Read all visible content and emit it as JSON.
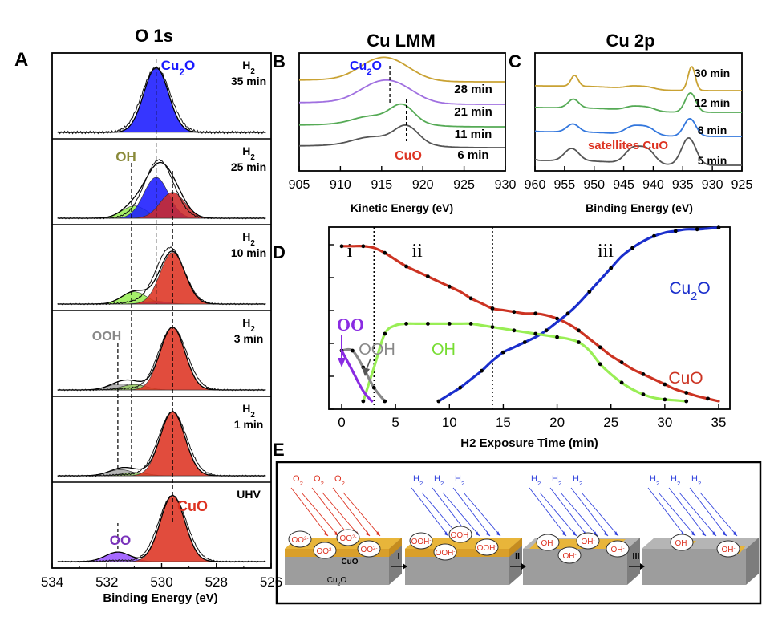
{
  "chart_data": [
    {
      "panel": "A",
      "type": "line",
      "title": "O 1s",
      "xlabel": "Binding Energy (eV)",
      "xlim": [
        534,
        526
      ],
      "x_ticks": [
        "534",
        "532",
        "530",
        "528",
        "526"
      ],
      "stack": [
        {
          "gas": "H2",
          "time": "35 min",
          "sum_center": 530.2,
          "sum_height": 0.95,
          "peaks": [
            {
              "component": "Cu2O",
              "center": 530.2,
              "height": 0.95,
              "color": "#1a1aff"
            }
          ],
          "labels": [
            "Cu2O"
          ]
        },
        {
          "gas": "H2",
          "time": "25 min",
          "sum_center": 530.1,
          "sum_height": 0.86,
          "peaks": [
            {
              "component": "OH",
              "center": 531.0,
              "height": 0.18,
              "color": "#99ee55"
            },
            {
              "component": "Cu2O",
              "center": 530.2,
              "height": 0.6,
              "color": "#1a1aff"
            },
            {
              "component": "CuO",
              "center": 529.6,
              "height": 0.38,
              "color": "#cc2a2a"
            }
          ],
          "labels": [
            "OH"
          ]
        },
        {
          "gas": "H2",
          "time": "10 min",
          "sum_center": 529.7,
          "sum_height": 0.84,
          "peaks": [
            {
              "component": "OH",
              "center": 531.0,
              "height": 0.18,
              "color": "#99ee55"
            },
            {
              "component": "Cu2O",
              "center": 530.2,
              "height": 0.04,
              "color": "#1a1aff"
            },
            {
              "component": "CuO",
              "center": 529.6,
              "height": 0.76,
              "color": "#dd3322"
            }
          ],
          "labels": []
        },
        {
          "gas": "H2",
          "time": "3 min",
          "sum_center": 529.6,
          "sum_height": 0.92,
          "peaks": [
            {
              "component": "OOH",
              "center": 531.5,
              "height": 0.09,
              "color": "#aaaaaa"
            },
            {
              "component": "OH",
              "center": 531.0,
              "height": 0.08,
              "color": "#99cc66"
            },
            {
              "component": "CuO",
              "center": 529.6,
              "height": 0.92,
              "color": "#dd3322"
            }
          ],
          "labels": [
            "OOH"
          ]
        },
        {
          "gas": "H2",
          "time": "1 min",
          "sum_center": 529.6,
          "sum_height": 0.94,
          "peaks": [
            {
              "component": "OOH",
              "center": 531.5,
              "height": 0.09,
              "color": "#aaaaaa"
            },
            {
              "component": "OH",
              "center": 531.0,
              "height": 0.05,
              "color": "#99cc66"
            },
            {
              "component": "CuO",
              "center": 529.6,
              "height": 0.94,
              "color": "#dd3322"
            }
          ],
          "labels": []
        },
        {
          "gas": "UHV",
          "time": "",
          "sum_center": 529.6,
          "sum_height": 0.97,
          "peaks": [
            {
              "component": "OO",
              "center": 531.6,
              "height": 0.14,
              "color": "#9a55ff"
            },
            {
              "component": "CuO",
              "center": 529.6,
              "height": 0.97,
              "color": "#dd3322"
            }
          ],
          "labels": [
            "CuO",
            "OO"
          ]
        }
      ],
      "reference_lines": [
        531.6,
        531.1,
        530.2,
        529.6
      ]
    },
    {
      "panel": "B",
      "type": "line",
      "title": "Cu LMM",
      "xlabel": "Kinetic Energy (eV)",
      "xlim": [
        905,
        930
      ],
      "x_ticks": [
        "905",
        "910",
        "915",
        "920",
        "925",
        "930"
      ],
      "series": [
        {
          "name": "28 min",
          "color": "#c9a233",
          "peak": 916.0
        },
        {
          "name": "21 min",
          "color": "#a070e0",
          "peak": 916.3
        },
        {
          "name": "11 min",
          "color": "#55aa55",
          "peak": 917.5
        },
        {
          "name": "6 min",
          "color": "#555555",
          "peak": 918.0
        }
      ],
      "annotations": [
        "Cu2O",
        "CuO"
      ]
    },
    {
      "panel": "C",
      "type": "line",
      "title": "Cu 2p",
      "xlabel": "Binding Energy (eV)",
      "xlim": [
        960,
        925
      ],
      "x_ticks": [
        "960",
        "955",
        "950",
        "945",
        "940",
        "935",
        "930",
        "925"
      ],
      "series": [
        {
          "name": "30 min",
          "color": "#c9a233"
        },
        {
          "name": "12 min",
          "color": "#55aa55"
        },
        {
          "name": "8 min",
          "color": "#3377dd"
        },
        {
          "name": "5 min",
          "color": "#555555"
        }
      ],
      "annotations": [
        "satellites CuO"
      ]
    },
    {
      "panel": "D",
      "type": "line",
      "xlabel": "H2 Exposure Time (min)",
      "xlim": [
        0,
        35
      ],
      "x_ticks": [
        "0",
        "5",
        "10",
        "15",
        "20",
        "25",
        "30",
        "35"
      ],
      "regions": [
        {
          "label": "i",
          "from": 0,
          "to": 3
        },
        {
          "label": "ii",
          "from": 3,
          "to": 14
        },
        {
          "label": "iii",
          "from": 14,
          "to": 35
        }
      ],
      "series": [
        {
          "name": "CuO",
          "color": "#cc3322",
          "x": [
            0,
            1,
            2,
            3,
            4,
            5,
            6,
            7,
            8,
            9,
            10,
            11,
            12,
            13,
            14,
            15,
            16,
            17,
            18,
            19,
            20,
            21,
            22,
            23,
            24,
            25,
            26,
            27,
            28,
            29,
            30,
            31,
            32,
            33,
            34,
            35
          ],
          "y": [
            0.92,
            0.92,
            0.92,
            0.91,
            0.88,
            0.84,
            0.8,
            0.77,
            0.74,
            0.71,
            0.68,
            0.65,
            0.61,
            0.58,
            0.55,
            0.54,
            0.53,
            0.52,
            0.52,
            0.51,
            0.49,
            0.46,
            0.42,
            0.37,
            0.32,
            0.27,
            0.23,
            0.19,
            0.16,
            0.13,
            0.1,
            0.07,
            0.05,
            0.03,
            0.015,
            0.0
          ]
        },
        {
          "name": "Cu2O",
          "color": "#1a2ecc",
          "x": [
            9,
            10,
            11,
            12,
            13,
            14,
            15,
            16,
            17,
            18,
            19,
            20,
            21,
            22,
            23,
            24,
            25,
            26,
            27,
            28,
            29,
            30,
            31,
            32,
            33,
            34,
            35
          ],
          "y": [
            0.0,
            0.04,
            0.08,
            0.13,
            0.18,
            0.24,
            0.29,
            0.32,
            0.35,
            0.38,
            0.42,
            0.47,
            0.52,
            0.58,
            0.65,
            0.72,
            0.79,
            0.86,
            0.91,
            0.95,
            0.98,
            1.0,
            1.01,
            1.02,
            1.02,
            1.025,
            1.03
          ]
        },
        {
          "name": "OH",
          "color": "#99ee55",
          "x": [
            2,
            3,
            4,
            5,
            6,
            7,
            8,
            9,
            10,
            11,
            12,
            13,
            14,
            15,
            16,
            17,
            18,
            19,
            20,
            21,
            22,
            23,
            24,
            25,
            26,
            27,
            28,
            29,
            30,
            31,
            32
          ],
          "y": [
            0.0,
            0.2,
            0.4,
            0.45,
            0.46,
            0.46,
            0.46,
            0.46,
            0.46,
            0.46,
            0.46,
            0.45,
            0.44,
            0.43,
            0.42,
            0.41,
            0.4,
            0.39,
            0.38,
            0.37,
            0.35,
            0.3,
            0.22,
            0.16,
            0.11,
            0.07,
            0.04,
            0.02,
            0.01,
            0.005,
            0.0
          ]
        },
        {
          "name": "OOH",
          "color": "#888888",
          "x": [
            0,
            1,
            2,
            3,
            4
          ],
          "y": [
            0.3,
            0.3,
            0.2,
            0.08,
            0.0
          ]
        },
        {
          "name": "OO",
          "color": "#8a2be2",
          "x": [
            0,
            1,
            2,
            2.8
          ],
          "y": [
            0.3,
            0.18,
            0.06,
            0.0
          ]
        }
      ],
      "labels": {
        "Cu2O": "Cu2O",
        "CuO": "CuO",
        "OH": "OH",
        "OOH": "OOH",
        "OO": "OO"
      }
    },
    {
      "panel": "E",
      "type": "diagram",
      "stages": [
        {
          "gas": [
            "O2",
            "O2",
            "O2"
          ],
          "species": [
            "OO2-",
            "OO2-",
            "OO2-",
            "OO2-"
          ],
          "layers": [
            "CuO",
            "Cu2O"
          ]
        },
        {
          "arrow": "i",
          "gas": [
            "H2",
            "H2",
            "H2"
          ],
          "species": [
            "OOH-",
            "OOH-",
            "OOH-",
            "OOH-"
          ]
        },
        {
          "arrow": "ii",
          "gas": [
            "H2",
            "H2",
            "H2"
          ],
          "species": [
            "OH-",
            "OH-",
            "OH-",
            "OH-"
          ]
        },
        {
          "arrow": "iii",
          "gas": [
            "H2",
            "H2",
            "H2"
          ],
          "species": [
            "OH-",
            "OH-"
          ]
        }
      ]
    }
  ],
  "panel_letters": [
    "A",
    "B",
    "C",
    "D",
    "E"
  ],
  "colors": {
    "cu2o": "#1a1aff",
    "cuo": "#dd3322",
    "oh": "#99ee55",
    "ooh": "#999999",
    "oo": "#8a2be2",
    "surface": "#e8b53a",
    "substrate": "#9d9d9d"
  }
}
